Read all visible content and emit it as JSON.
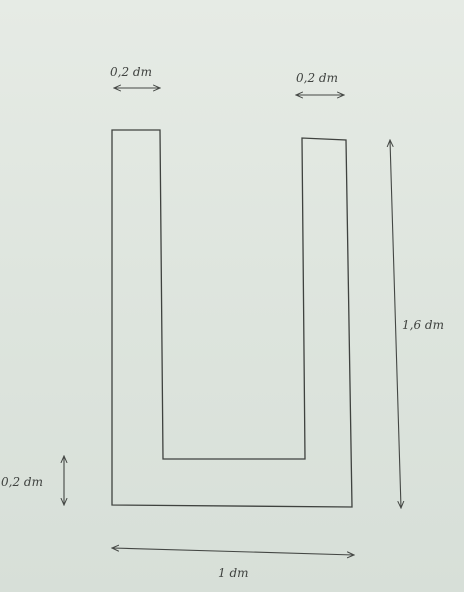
{
  "diagram": {
    "labels": {
      "top_left_width": "0,2 dm",
      "top_right_width": "0,2 dm",
      "height": "1,6 dm",
      "bottom_thickness": "0,2 dm",
      "total_width": "1 dm"
    },
    "colors": {
      "background": "#dde4de",
      "ink": "#3f423f"
    }
  }
}
